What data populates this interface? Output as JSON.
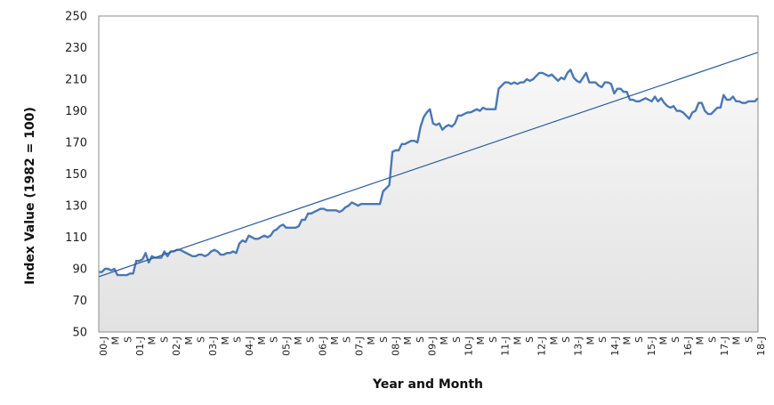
{
  "chart_data": {
    "type": "area",
    "title": "",
    "xlabel": "Year and Month",
    "ylabel": "Index Value (1982 = 100)",
    "ylim": [
      50,
      250
    ],
    "yticks": [
      50,
      70,
      90,
      110,
      130,
      150,
      170,
      190,
      210,
      230,
      250
    ],
    "x_tick_labels": [
      "00-J",
      "M",
      "S",
      "01-J",
      "M",
      "S",
      "02-J",
      "M",
      "S",
      "03-J",
      "M",
      "S",
      "04-J",
      "M",
      "S",
      "05-J",
      "M",
      "S",
      "06-J",
      "M",
      "S",
      "07-J",
      "M",
      "S",
      "08-J",
      "M",
      "S",
      "09-J",
      "M",
      "S",
      "10-J",
      "M",
      "S",
      "11-J",
      "M",
      "S",
      "12-J",
      "M",
      "S",
      "13-J",
      "M",
      "S",
      "14-J",
      "M",
      "S",
      "15-J",
      "M",
      "S",
      "16-J",
      "M",
      "S",
      "17-J",
      "M",
      "S",
      "18-J"
    ],
    "grid": false,
    "series": [
      {
        "values": [
          88,
          88,
          90,
          90,
          89,
          90,
          86,
          86,
          86,
          86,
          87,
          87,
          95,
          95,
          96,
          100,
          94,
          98,
          97,
          97,
          97,
          101,
          98,
          101,
          101,
          102,
          102,
          101,
          100,
          99,
          98,
          98,
          99,
          99,
          98,
          99,
          101,
          102,
          101,
          99,
          99,
          100,
          100,
          101,
          100,
          106,
          108,
          107,
          111,
          110,
          109,
          109,
          110,
          111,
          110,
          111,
          114,
          115,
          117,
          118,
          116,
          116,
          116,
          116,
          117,
          121,
          121,
          125,
          125,
          126,
          127,
          128,
          128,
          127,
          127,
          127,
          127,
          126,
          127,
          129,
          130,
          132,
          131,
          130,
          131,
          131,
          131,
          131,
          131,
          131,
          131,
          139,
          141,
          143,
          164,
          165,
          165,
          169,
          169,
          170,
          171,
          171,
          170,
          180,
          186,
          189,
          191,
          182,
          181,
          182,
          178,
          180,
          181,
          180,
          182,
          187,
          187,
          188,
          189,
          189,
          190,
          191,
          190,
          192,
          191,
          191,
          191,
          191,
          204,
          206,
          208,
          208,
          207,
          208,
          207,
          208,
          208,
          210,
          209,
          210,
          212,
          214,
          214,
          213,
          212,
          213,
          211,
          209,
          211,
          210,
          214,
          216,
          211,
          209,
          208,
          211,
          214,
          208,
          208,
          208,
          206,
          205,
          208,
          208,
          207,
          201,
          204,
          204,
          202,
          202,
          197,
          197,
          196,
          196,
          197,
          198,
          197,
          196,
          199,
          196,
          198,
          195,
          193,
          192,
          193,
          190,
          190,
          189,
          187,
          185,
          189,
          190,
          195,
          195,
          190,
          188,
          188,
          190,
          192,
          192,
          200,
          197,
          197,
          199,
          196,
          196,
          195,
          195,
          196,
          196,
          196,
          198
        ]
      },
      {
        "name": "",
        "values": [
          85,
          227
        ]
      }
    ],
    "colors": {
      "line": "#4a78b5",
      "trend": "#2d5d99",
      "fill": "#ececec"
    }
  }
}
